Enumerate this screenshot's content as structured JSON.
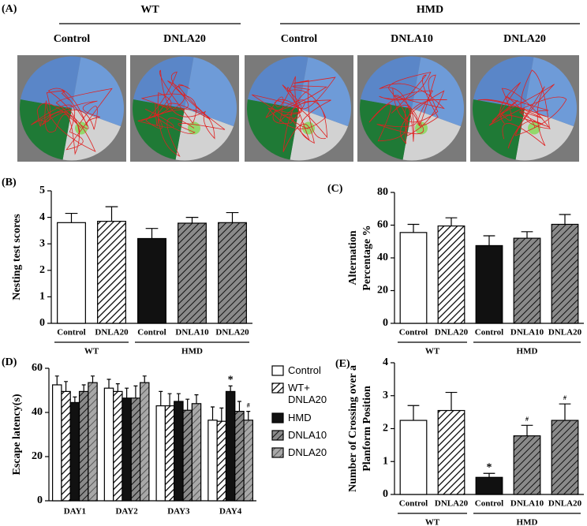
{
  "panel_a": {
    "label": "(A)",
    "groups": [
      {
        "name": "WT",
        "conditions": [
          "Control",
          "DNLA20"
        ]
      },
      {
        "name": "HMD",
        "conditions": [
          "Control",
          "DNLA10",
          "DNLA20"
        ]
      }
    ]
  },
  "chart_data": [
    {
      "type": "bar",
      "label": "(B)",
      "ylabel": [
        "Nesting test scores"
      ],
      "categories": [
        "Control",
        "DNLA20",
        "Control",
        "DNLA10",
        "DNLA20"
      ],
      "values": [
        3.8,
        3.85,
        3.2,
        3.78,
        3.8
      ],
      "errors": [
        0.35,
        0.55,
        0.38,
        0.22,
        0.38
      ],
      "bar_styles": [
        "white",
        "hatch-white",
        "black",
        "hatch-gray",
        "hatch-gray"
      ],
      "groups": [
        {
          "name": "WT",
          "count": 2
        },
        {
          "name": "HMD",
          "count": 3
        }
      ],
      "ylim": [
        0,
        5
      ],
      "yticks": [
        0,
        1,
        2,
        3,
        4,
        5
      ]
    },
    {
      "type": "bar",
      "label": "(C)",
      "ylabel": [
        "Alternation",
        "Percentage %"
      ],
      "categories": [
        "Control",
        "DNLA20",
        "Control",
        "DNLA10",
        "DNLA20"
      ],
      "values": [
        55.5,
        59.5,
        47.5,
        52,
        60.5
      ],
      "errors": [
        5,
        5,
        6,
        4,
        6
      ],
      "bar_styles": [
        "white",
        "hatch-white",
        "black",
        "hatch-gray",
        "hatch-gray"
      ],
      "groups": [
        {
          "name": "WT",
          "count": 2
        },
        {
          "name": "HMD",
          "count": 3
        }
      ],
      "ylim": [
        0,
        80
      ],
      "yticks": [
        0,
        20,
        40,
        60,
        80
      ]
    },
    {
      "type": "grouped_bar",
      "label": "(D)",
      "ylabel": [
        "Escape latency(s)"
      ],
      "categories": [
        "DAY1",
        "DAY2",
        "DAY3",
        "DAY4"
      ],
      "series": [
        {
          "name": "Control",
          "style": "white",
          "values": [
            52.5,
            51,
            43,
            36.5
          ],
          "errors": [
            4,
            4,
            6.5,
            6
          ]
        },
        {
          "name": "WT+ DNLA20",
          "style": "hatch-white",
          "values": [
            49.5,
            49.5,
            43,
            36
          ],
          "errors": [
            4.5,
            3.5,
            5.5,
            6
          ]
        },
        {
          "name": "HMD",
          "style": "black",
          "values": [
            44.5,
            46.5,
            45,
            49.5
          ],
          "errors": [
            2.5,
            4.5,
            3.5,
            2.5
          ]
        },
        {
          "name": "DNLA10",
          "style": "hatch-gray",
          "values": [
            49.5,
            46.5,
            41,
            40.5
          ],
          "errors": [
            3,
            5.5,
            5,
            4.5
          ]
        },
        {
          "name": "DNLA20",
          "style": "hatch-lightgray",
          "values": [
            53.5,
            53.5,
            44,
            36.5
          ],
          "errors": [
            3,
            3,
            4,
            4
          ]
        }
      ],
      "annotations": [
        {
          "text": "*",
          "series": 2,
          "category": 3
        },
        {
          "text": "#",
          "series": 4,
          "category": 3
        }
      ],
      "ylim": [
        0,
        60
      ],
      "yticks": [
        0,
        20,
        40,
        60
      ]
    },
    {
      "type": "bar",
      "label": "(E)",
      "ylabel": [
        "Number of Crossing over a",
        "Planform Position"
      ],
      "categories": [
        "Control",
        "DNLA20",
        "Control",
        "DNLA10",
        "DNLA20"
      ],
      "values": [
        2.25,
        2.55,
        0.52,
        1.78,
        2.25
      ],
      "errors": [
        0.45,
        0.55,
        0.12,
        0.32,
        0.5
      ],
      "bar_styles": [
        "white",
        "hatch-white",
        "black",
        "hatch-gray",
        "hatch-gray"
      ],
      "groups": [
        {
          "name": "WT",
          "count": 2
        },
        {
          "name": "HMD",
          "count": 3
        }
      ],
      "annotations": [
        {
          "text": "*",
          "index": 2
        },
        {
          "text": "#",
          "index": 3
        },
        {
          "text": "#",
          "index": 4
        }
      ],
      "ylim": [
        0,
        4
      ],
      "yticks": [
        0,
        1,
        2,
        3,
        4
      ]
    }
  ]
}
